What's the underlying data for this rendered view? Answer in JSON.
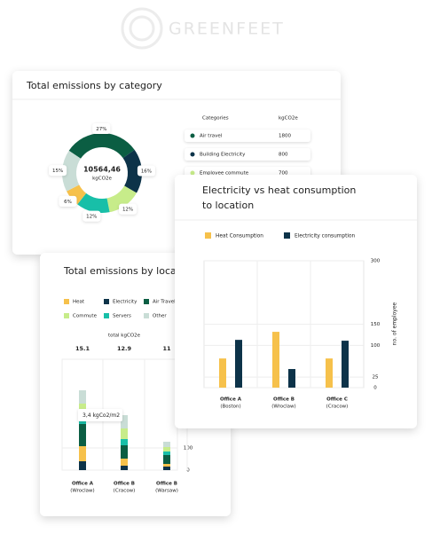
{
  "brand": "GREENFEET",
  "category_card": {
    "title": "Total emissions by category",
    "total": "10564,46",
    "unit": "kgCO2e",
    "values": [
      27,
      16,
      12,
      12,
      6,
      15
    ],
    "value_labels": [
      "27%",
      "16%",
      "12%",
      "12%",
      "6%",
      "15%"
    ],
    "colors": [
      "#0b5e43",
      "#0d3349",
      "#c7ec8a",
      "#18bfa8",
      "#f6c14b",
      "#c9ddd6"
    ],
    "columns": [
      "Categories",
      "kgCO2e"
    ],
    "rows": [
      [
        "Air travel",
        1800
      ],
      [
        "Building Electricity",
        800
      ],
      [
        "Employee commute",
        700
      ]
    ],
    "row_colors": [
      "#0b5e43",
      "#0d3349",
      "#c7ec8a"
    ]
  },
  "location_card": {
    "title": "Total emissions by location",
    "total_label": "total kgCO2e",
    "totals": [
      15.1,
      12.9,
      11
    ],
    "categories": [
      [
        "Office A",
        "(Wroclaw)"
      ],
      [
        "Office B",
        "(Cracow)"
      ],
      [
        "Office B",
        "(Warsaw)"
      ]
    ],
    "series": [
      {
        "name": "Electricity",
        "color": "#0d3349",
        "values": [
          40,
          20,
          16
        ]
      },
      {
        "name": "Heat",
        "color": "#f6c14b",
        "values": [
          68,
          32,
          12
        ]
      },
      {
        "name": "Air Travel",
        "color": "#0b5e43",
        "values": [
          100,
          60,
          40
        ]
      },
      {
        "name": "Servers",
        "color": "#18bfa8",
        "values": [
          44,
          28,
          16
        ]
      },
      {
        "name": "Commute",
        "color": "#c7ec8a",
        "values": [
          48,
          48,
          20
        ]
      },
      {
        "name": "Other",
        "color": "#c9ddd6",
        "values": [
          60,
          60,
          24
        ]
      }
    ],
    "legend_order": [
      1,
      0,
      2,
      4,
      3,
      5
    ],
    "tooltip": "3,4 kgCo2/m2",
    "ylim": [
      0,
      500
    ],
    "yticks": [
      0,
      100
    ]
  },
  "consumption_card": {
    "title": [
      "Electricity vs heat consumption",
      "to location"
    ],
    "categories": [
      [
        "Office A",
        "(Boston)"
      ],
      [
        "Office B",
        "(Wroclaw)"
      ],
      [
        "Office C",
        "(Cracow)"
      ]
    ],
    "series": [
      {
        "name": "Heat Consumption",
        "color": "#f6c14b",
        "values": [
          69,
          132,
          69
        ]
      },
      {
        "name": "Electricity consumption",
        "color": "#0d3349",
        "values": [
          113,
          44,
          111
        ]
      }
    ],
    "ylim": [
      0,
      300
    ],
    "yticks": [
      0,
      25,
      100,
      150,
      300
    ],
    "y_label": "no. of employee"
  }
}
